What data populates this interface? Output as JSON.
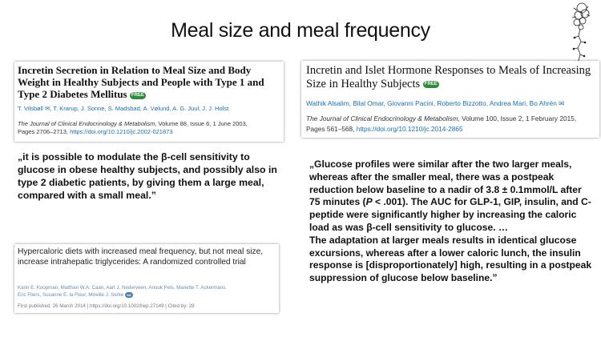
{
  "slide": {
    "title": "Meal size and meal frequency"
  },
  "paper1": {
    "title": "Incretin Secretion in Relation to Meal Size and Body Weight in Healthy Subjects and People with Type 1 and Type 2 Diabetes Mellitus",
    "badge": "FREE",
    "authors": "T. Vilsbøll ✉, T. Krarup, J. Sonne, S. Madsbad, A. Vølund, A. G. Juul, J. J. Holst",
    "journal": "The Journal of Clinical Endocrinology & Metabolism",
    "citation": ", Volume 88, Issue 6, 1 June 2003,",
    "pages": "Pages 2706–2713, ",
    "doi": "https://doi.org/10.1210/jc.2002-021873"
  },
  "paper2": {
    "title": "Incretin and Islet Hormone Responses to Meals of Increasing Size in Healthy Subjects",
    "badge": "FREE",
    "authors": "Wathik Alsalim, Bilal Omar, Giovanni Pacini, Roberto Bizzotto, Andrea Mari, Bo Ahrén ✉",
    "journal": "The Journal of Clinical Endocrinology & Metabolism",
    "citation": ", Volume 100, Issue 2, 1 February 2015,",
    "pages": "Pages 561–568, ",
    "doi": "https://doi.org/10.1210/jc.2014-2865"
  },
  "paper3": {
    "title": "Hypercaloric diets with increased meal frequency, but not meal size, increase intrahepatic triglycerides: A randomized controlled trial",
    "authors_line1": "Karin E. Koopman,  Matthan W.A. Caan,  Aart J. Nederveen,  Anouk Pels,  Mariette T. Ackermans,",
    "authors_line2": "Eric Fliers,  Susanne E. la Fleur,  Mireille J. Serlie",
    "published": "First published: 26 March 2014  |  https://doi.org/10.1002/hep.27149  |  Cited by: 29"
  },
  "quote1": "„it is possible to modulate the β-cell sensitivity to glucose in obese healthy subjects, and possibly also in type 2 diabetic patients, by giving them a large meal, compared with a small meal.”",
  "quote2": {
    "part1": "„Glucose profiles were similar after the two larger meals, whereas after the smaller meal, there was a postpeak reduction below baseline to a nadir of 3.8 ± 0.1mmol/L after 75 minutes (",
    "p": "P",
    "part2": " < .001). The AUC for GLP-1, GIP, insulin, and C-peptide were significantly higher by increasing the caloric load as was β-cell sensitivity to glucose. …",
    "part3": "The adaptation at larger meals results in identical glucose excursions, whereas after a lower caloric lunch, the insulin response is [disproportionately] high, resulting in a postpeak suppression of glucose below baseline.”"
  }
}
